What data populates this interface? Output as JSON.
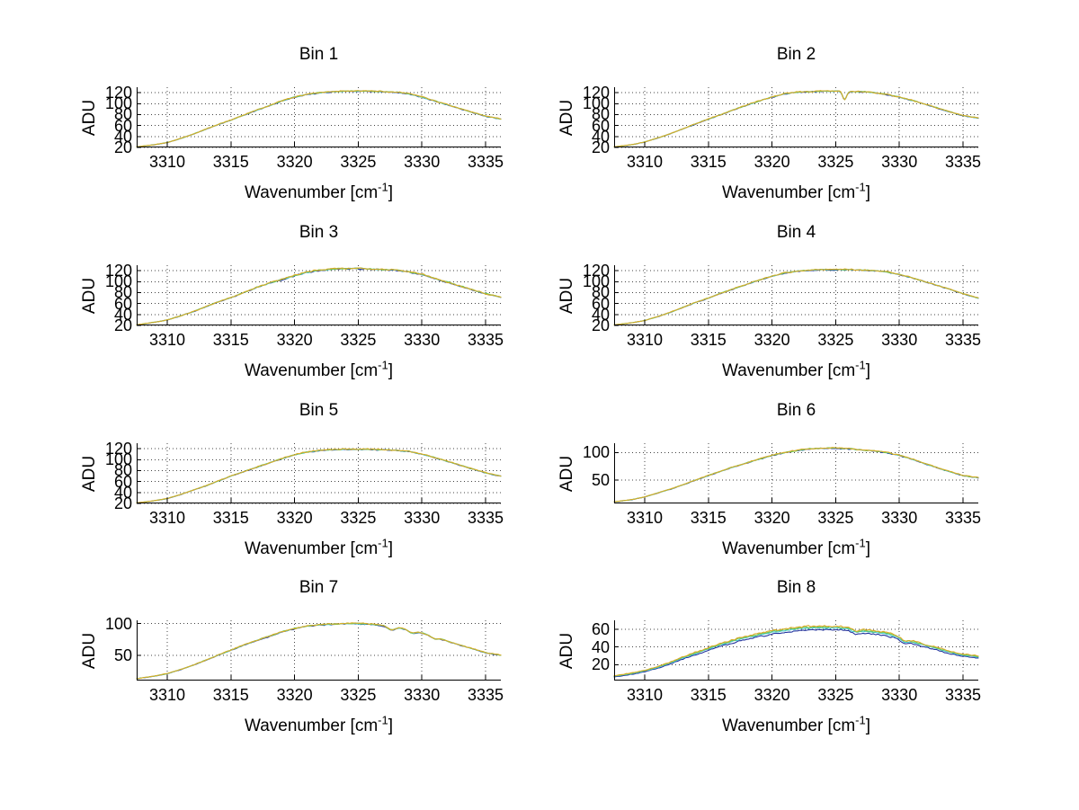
{
  "figure": {
    "background": "#ffffff",
    "text_color": "#000000"
  },
  "style": {
    "line_colors": [
      "#24359f",
      "#45c8cc",
      "#6cc653",
      "#d9ac2a"
    ],
    "series_offsets": [
      -1.0,
      -0.25,
      0.2,
      0.55
    ],
    "series_noise_scale": [
      0.85,
      0.7,
      0.8,
      1.0
    ],
    "grid_color": "#444444",
    "axis_color": "#000000"
  },
  "labels": {
    "ylabel": "ADU",
    "xlabel_pre": "Wavenumber [cm",
    "xlabel_sup": "-1",
    "xlabel_post": "]"
  },
  "chart_data": [
    {
      "type": "line",
      "title": "Bin 1",
      "xlabel": "Wavenumber [cm^-1]",
      "ylabel": "ADU",
      "xlim": [
        3307.6,
        3336.2
      ],
      "xticks": [
        3310,
        3315,
        3320,
        3325,
        3330,
        3335
      ],
      "ylim": [
        20,
        130
      ],
      "yticks": [
        20,
        40,
        60,
        80,
        100,
        120
      ],
      "x": [
        3307.6,
        3309,
        3310,
        3311,
        3312,
        3313,
        3314,
        3315,
        3316,
        3317,
        3318,
        3319,
        3320,
        3321,
        3322,
        3323,
        3324,
        3325,
        3326,
        3327,
        3328,
        3329,
        3330,
        3331,
        3332,
        3333,
        3334,
        3335,
        3336.2
      ],
      "y": [
        21,
        25,
        29,
        36,
        44,
        53,
        62,
        70,
        79,
        88,
        96,
        105,
        112,
        117,
        120,
        122,
        123,
        123,
        123,
        122,
        121,
        118,
        112,
        105,
        98,
        91,
        84,
        77,
        72
      ],
      "noise": 1.3,
      "spread": 0.5,
      "spikes": []
    },
    {
      "type": "line",
      "title": "Bin 2",
      "xlabel": "Wavenumber [cm^-1]",
      "ylabel": "ADU",
      "xlim": [
        3307.6,
        3336.2
      ],
      "xticks": [
        3310,
        3315,
        3320,
        3325,
        3330,
        3335
      ],
      "ylim": [
        20,
        130
      ],
      "yticks": [
        20,
        40,
        60,
        80,
        100,
        120
      ],
      "x": [
        3307.6,
        3309,
        3310,
        3311,
        3312,
        3313,
        3314,
        3315,
        3316,
        3317,
        3318,
        3319,
        3320,
        3321,
        3322,
        3323,
        3324,
        3325,
        3326,
        3327,
        3328,
        3329,
        3330,
        3331,
        3332,
        3333,
        3334,
        3335,
        3336.2
      ],
      "y": [
        21,
        25,
        30,
        37,
        45,
        54,
        63,
        72,
        80,
        89,
        97,
        105,
        112,
        118,
        121,
        122,
        123,
        123,
        122,
        122,
        120,
        117,
        112,
        106,
        99,
        92,
        85,
        78,
        74
      ],
      "noise": 1.3,
      "spread": 0.5,
      "spikes": [
        {
          "x": 3325.7,
          "dy": -15,
          "w": 0.15
        }
      ]
    },
    {
      "type": "line",
      "title": "Bin 3",
      "xlabel": "Wavenumber [cm^-1]",
      "ylabel": "ADU",
      "xlim": [
        3307.6,
        3336.2
      ],
      "xticks": [
        3310,
        3315,
        3320,
        3325,
        3330,
        3335
      ],
      "ylim": [
        20,
        130
      ],
      "yticks": [
        20,
        40,
        60,
        80,
        100,
        120
      ],
      "x": [
        3307.6,
        3309,
        3310,
        3311,
        3312,
        3313,
        3314,
        3315,
        3316,
        3317,
        3318,
        3319,
        3320,
        3321,
        3322,
        3323,
        3324,
        3325,
        3326,
        3327,
        3328,
        3329,
        3330,
        3331,
        3332,
        3333,
        3334,
        3335,
        3336.2
      ],
      "y": [
        21,
        26,
        30,
        37,
        45,
        54,
        63,
        71,
        80,
        89,
        97,
        104,
        111,
        117,
        121,
        123,
        124,
        124,
        123,
        122,
        121,
        118,
        113,
        106,
        99,
        92,
        85,
        78,
        72
      ],
      "noise": 1.8,
      "spread": 0.5,
      "spikes": []
    },
    {
      "type": "line",
      "title": "Bin 4",
      "xlabel": "Wavenumber [cm^-1]",
      "ylabel": "ADU",
      "xlim": [
        3307.6,
        3336.2
      ],
      "xticks": [
        3310,
        3315,
        3320,
        3325,
        3330,
        3335
      ],
      "ylim": [
        20,
        130
      ],
      "yticks": [
        20,
        40,
        60,
        80,
        100,
        120
      ],
      "x": [
        3307.6,
        3309,
        3310,
        3311,
        3312,
        3313,
        3314,
        3315,
        3316,
        3317,
        3318,
        3319,
        3320,
        3321,
        3322,
        3323,
        3324,
        3325,
        3326,
        3327,
        3328,
        3329,
        3330,
        3331,
        3332,
        3333,
        3334,
        3335,
        3336.2
      ],
      "y": [
        21,
        25,
        29,
        36,
        44,
        53,
        62,
        70,
        79,
        87,
        95,
        103,
        110,
        116,
        119,
        121,
        122,
        122,
        122,
        121,
        120,
        118,
        113,
        107,
        100,
        93,
        86,
        78,
        70
      ],
      "noise": 1.3,
      "spread": 0.5,
      "spikes": []
    },
    {
      "type": "line",
      "title": "Bin 5",
      "xlabel": "Wavenumber [cm^-1]",
      "ylabel": "ADU",
      "xlim": [
        3307.6,
        3336.2
      ],
      "xticks": [
        3310,
        3315,
        3320,
        3325,
        3330,
        3335
      ],
      "ylim": [
        20,
        130
      ],
      "yticks": [
        20,
        40,
        60,
        80,
        100,
        120
      ],
      "x": [
        3307.6,
        3309,
        3310,
        3311,
        3312,
        3313,
        3314,
        3315,
        3316,
        3317,
        3318,
        3319,
        3320,
        3321,
        3322,
        3323,
        3324,
        3325,
        3326,
        3327,
        3328,
        3329,
        3330,
        3331,
        3332,
        3333,
        3334,
        3335,
        3336.2
      ],
      "y": [
        21,
        25,
        29,
        36,
        44,
        52,
        61,
        70,
        78,
        86,
        94,
        102,
        109,
        114,
        117,
        118,
        119,
        119,
        119,
        118,
        117,
        115,
        110,
        104,
        97,
        90,
        83,
        76,
        70
      ],
      "noise": 1.3,
      "spread": 0.5,
      "spikes": []
    },
    {
      "type": "line",
      "title": "Bin 6",
      "xlabel": "Wavenumber [cm^-1]",
      "ylabel": "ADU",
      "xlim": [
        3307.6,
        3336.2
      ],
      "xticks": [
        3310,
        3315,
        3320,
        3325,
        3330,
        3335
      ],
      "ylim": [
        7,
        117
      ],
      "yticks": [
        50,
        100
      ],
      "x": [
        3307.6,
        3309,
        3310,
        3311,
        3312,
        3313,
        3314,
        3315,
        3316,
        3317,
        3318,
        3319,
        3320,
        3321,
        3322,
        3323,
        3324,
        3325,
        3326,
        3327,
        3328,
        3329,
        3330,
        3331,
        3332,
        3333,
        3334,
        3335,
        3336.2
      ],
      "y": [
        10,
        14,
        19,
        26,
        33,
        41,
        50,
        58,
        66,
        74,
        81,
        88,
        95,
        100,
        104,
        107,
        108,
        108,
        107,
        105,
        103,
        100,
        95,
        88,
        80,
        72,
        65,
        58,
        54
      ],
      "noise": 1.4,
      "spread": 0.6,
      "spikes": []
    },
    {
      "type": "line",
      "title": "Bin 7",
      "xlabel": "Wavenumber [cm^-1]",
      "ylabel": "ADU",
      "xlim": [
        3307.6,
        3336.2
      ],
      "xticks": [
        3310,
        3315,
        3320,
        3325,
        3330,
        3335
      ],
      "ylim": [
        10,
        105
      ],
      "yticks": [
        50,
        100
      ],
      "x": [
        3307.6,
        3309,
        3310,
        3311,
        3312,
        3313,
        3314,
        3315,
        3316,
        3317,
        3318,
        3319,
        3320,
        3321,
        3322,
        3323,
        3324,
        3325,
        3326,
        3327,
        3328,
        3329,
        3330,
        3331,
        3332,
        3333,
        3334,
        3335,
        3336.2
      ],
      "y": [
        13,
        17,
        21,
        27,
        34,
        42,
        50,
        58,
        66,
        73,
        80,
        87,
        92,
        96,
        98,
        99,
        100,
        100,
        99,
        97,
        94,
        90,
        85,
        79,
        72,
        66,
        60,
        54,
        50
      ],
      "noise": 1.2,
      "spread": 0.6,
      "spikes": [
        {
          "x": 3327.6,
          "dy": -5,
          "w": 0.3
        },
        {
          "x": 3329.2,
          "dy": -4,
          "w": 0.25
        },
        {
          "x": 3331.0,
          "dy": -3,
          "w": 0.25
        }
      ]
    },
    {
      "type": "line",
      "title": "Bin 8",
      "xlabel": "Wavenumber [cm^-1]",
      "ylabel": "ADU",
      "xlim": [
        3307.6,
        3336.2
      ],
      "xticks": [
        3310,
        3315,
        3320,
        3325,
        3330,
        3335
      ],
      "ylim": [
        2,
        70
      ],
      "yticks": [
        20,
        40,
        60
      ],
      "x": [
        3307.6,
        3309,
        3310,
        3311,
        3312,
        3313,
        3314,
        3315,
        3316,
        3317,
        3318,
        3319,
        3320,
        3321,
        3322,
        3323,
        3324,
        3325,
        3326,
        3327,
        3328,
        3329,
        3330,
        3331,
        3332,
        3333,
        3334,
        3335,
        3336.2
      ],
      "y": [
        7,
        10,
        13,
        17,
        22,
        28,
        33,
        38,
        43,
        47,
        51,
        54,
        57,
        59,
        61,
        62,
        62,
        62,
        61,
        59,
        57,
        55,
        51,
        46,
        42,
        38,
        34,
        31,
        29
      ],
      "noise": 1.2,
      "spread": 3.0,
      "spikes": [
        {
          "x": 3326.6,
          "dy": -3,
          "w": 0.3
        },
        {
          "x": 3330.4,
          "dy": -3,
          "w": 0.25
        }
      ]
    }
  ]
}
